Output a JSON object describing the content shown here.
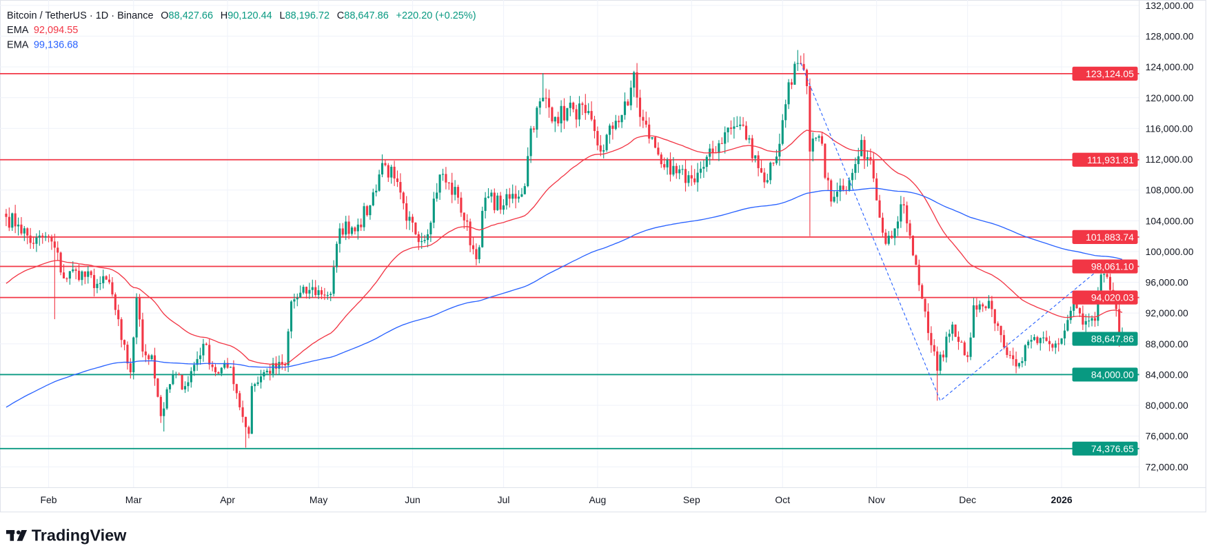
{
  "header": {
    "symbol": "Bitcoin / TetherUS · 1D · Binance",
    "o_label": "O",
    "o_value": "88,427.66",
    "h_label": "H",
    "h_value": "90,120.44",
    "l_label": "L",
    "l_value": "88,196.72",
    "c_label": "C",
    "c_value": "88,647.86",
    "change": "+220.20 (+0.25%)",
    "ema1_label": "EMA",
    "ema1_value": "92,094.55",
    "ema2_label": "EMA",
    "ema2_value": "99,136.68"
  },
  "logo": {
    "text": "TradingView"
  },
  "colors": {
    "up": "#089981",
    "down": "#f23645",
    "ema_fast": "#f23645",
    "ema_slow": "#2962ff",
    "resistance": "#f23645",
    "support": "#089981",
    "trend_dashed": "#2962ff"
  },
  "chart_data": {
    "type": "candlestick",
    "symbol": "BTCUSDT",
    "interval": "1D",
    "ylim": [
      70000,
      132000
    ],
    "y_ticks": [
      "132,000.00",
      "128,000.00",
      "124,000.00",
      "120,000.00",
      "116,000.00",
      "112,000.00",
      "108,000.00",
      "104,000.00",
      "100,000.00",
      "96,000.00",
      "92,000.00",
      "88,000.00",
      "84,000.00",
      "80,000.00",
      "76,000.00",
      "72,000.00"
    ],
    "x_ticks": [
      {
        "label": "Feb",
        "date": "2025-02-01"
      },
      {
        "label": "Mar",
        "date": "2025-03-01"
      },
      {
        "label": "Apr",
        "date": "2025-04-01"
      },
      {
        "label": "May",
        "date": "2025-05-01"
      },
      {
        "label": "Jun",
        "date": "2025-06-01"
      },
      {
        "label": "Jul",
        "date": "2025-07-01"
      },
      {
        "label": "Aug",
        "date": "2025-08-01"
      },
      {
        "label": "Sep",
        "date": "2025-09-01"
      },
      {
        "label": "Oct",
        "date": "2025-10-01"
      },
      {
        "label": "Nov",
        "date": "2025-11-01"
      },
      {
        "label": "Dec",
        "date": "2025-12-01"
      },
      {
        "label": "2026",
        "date": "2026-01-01",
        "bold": true
      }
    ],
    "date_range": [
      "2025-01-18",
      "2026-01-21"
    ],
    "approx_closes": [
      [
        "2025-01-18",
        104500
      ],
      [
        "2025-01-22",
        103500
      ],
      [
        "2025-01-27",
        101000
      ],
      [
        "2025-01-31",
        102000
      ],
      [
        "2025-02-03",
        100500
      ],
      [
        "2025-02-06",
        96500
      ],
      [
        "2025-02-10",
        97500
      ],
      [
        "2025-02-17",
        95800
      ],
      [
        "2025-02-21",
        96000
      ],
      [
        "2025-02-25",
        88500
      ],
      [
        "2025-02-28",
        84300
      ],
      [
        "2025-03-02",
        94000
      ],
      [
        "2025-03-04",
        87000
      ],
      [
        "2025-03-07",
        86500
      ],
      [
        "2025-03-10",
        78600
      ],
      [
        "2025-03-14",
        84000
      ],
      [
        "2025-03-18",
        82500
      ],
      [
        "2025-03-24",
        88000
      ],
      [
        "2025-03-28",
        84300
      ],
      [
        "2025-04-02",
        85000
      ],
      [
        "2025-04-06",
        78500
      ],
      [
        "2025-04-08",
        76300
      ],
      [
        "2025-04-09",
        82500
      ],
      [
        "2025-04-14",
        84500
      ],
      [
        "2025-04-20",
        85200
      ],
      [
        "2025-04-22",
        93500
      ],
      [
        "2025-04-28",
        95000
      ],
      [
        "2025-05-05",
        94500
      ],
      [
        "2025-05-08",
        103000
      ],
      [
        "2025-05-14",
        103500
      ],
      [
        "2025-05-18",
        106000
      ],
      [
        "2025-05-22",
        111500
      ],
      [
        "2025-05-26",
        109500
      ],
      [
        "2025-05-30",
        104000
      ],
      [
        "2025-06-05",
        101500
      ],
      [
        "2025-06-10",
        110000
      ],
      [
        "2025-06-16",
        107000
      ],
      [
        "2025-06-22",
        99000
      ],
      [
        "2025-06-25",
        107000
      ],
      [
        "2025-07-01",
        106000
      ],
      [
        "2025-07-08",
        108500
      ],
      [
        "2025-07-10",
        116000
      ],
      [
        "2025-07-14",
        120000
      ],
      [
        "2025-07-18",
        117500
      ],
      [
        "2025-07-24",
        118500
      ],
      [
        "2025-07-28",
        118000
      ],
      [
        "2025-08-02",
        113000
      ],
      [
        "2025-08-07",
        117000
      ],
      [
        "2025-08-11",
        119000
      ],
      [
        "2025-08-13",
        123300
      ],
      [
        "2025-08-15",
        117500
      ],
      [
        "2025-08-20",
        113500
      ],
      [
        "2025-08-25",
        110000
      ],
      [
        "2025-09-01",
        109500
      ],
      [
        "2025-09-05",
        111000
      ],
      [
        "2025-09-12",
        115500
      ],
      [
        "2025-09-17",
        116500
      ],
      [
        "2025-09-22",
        112500
      ],
      [
        "2025-09-25",
        109000
      ],
      [
        "2025-09-30",
        114000
      ],
      [
        "2025-10-03",
        122000
      ],
      [
        "2025-10-06",
        124500
      ],
      [
        "2025-10-09",
        121500
      ],
      [
        "2025-10-10",
        113000
      ],
      [
        "2025-10-13",
        115000
      ],
      [
        "2025-10-17",
        106500
      ],
      [
        "2025-10-21",
        108000
      ],
      [
        "2025-10-27",
        114500
      ],
      [
        "2025-10-31",
        109500
      ],
      [
        "2025-11-04",
        101000
      ],
      [
        "2025-11-07",
        103000
      ],
      [
        "2025-11-10",
        106000
      ],
      [
        "2025-11-13",
        99500
      ],
      [
        "2025-11-17",
        92200
      ],
      [
        "2025-11-21",
        84500
      ],
      [
        "2025-11-26",
        90500
      ],
      [
        "2025-12-01",
        86300
      ],
      [
        "2025-12-03",
        93000
      ],
      [
        "2025-12-09",
        92500
      ],
      [
        "2025-12-15",
        86500
      ],
      [
        "2025-12-18",
        85500
      ],
      [
        "2025-12-22",
        88500
      ],
      [
        "2025-12-29",
        87500
      ],
      [
        "2026-01-01",
        88700
      ],
      [
        "2026-01-05",
        93500
      ],
      [
        "2026-01-08",
        90500
      ],
      [
        "2026-01-12",
        91000
      ],
      [
        "2026-01-14",
        97000
      ],
      [
        "2026-01-17",
        95000
      ],
      [
        "2026-01-19",
        92500
      ],
      [
        "2026-01-20",
        88400
      ]
    ],
    "notable_extremes": [
      {
        "date": "2025-02-03",
        "low": 91200
      },
      {
        "date": "2025-03-11",
        "low": 76600
      },
      {
        "date": "2025-04-07",
        "low": 74500
      },
      {
        "date": "2025-06-22",
        "low": 98200
      },
      {
        "date": "2025-07-14",
        "high": 123200
      },
      {
        "date": "2025-08-14",
        "high": 124500
      },
      {
        "date": "2025-10-06",
        "high": 126200
      },
      {
        "date": "2025-10-10",
        "low": 102000
      },
      {
        "date": "2025-11-21",
        "low": 80600
      },
      {
        "date": "2026-01-14",
        "high": 97900
      }
    ],
    "last_candle": {
      "date": "2026-01-21",
      "open": 88427.66,
      "high": 90120.44,
      "low": 88196.72,
      "close": 88647.86
    },
    "indicators": [
      {
        "name": "EMA",
        "value": "92,094.55",
        "color": "#f23645"
      },
      {
        "name": "EMA",
        "value": "99,136.68",
        "color": "#2962ff"
      }
    ],
    "horizontal_levels": [
      {
        "price": 123124.05,
        "label": "123,124.05",
        "kind": "resistance"
      },
      {
        "price": 111931.81,
        "label": "111,931.81",
        "kind": "resistance"
      },
      {
        "price": 101883.74,
        "label": "101,883.74",
        "kind": "resistance"
      },
      {
        "price": 98061.1,
        "label": "98,061.10",
        "kind": "resistance"
      },
      {
        "price": 94020.03,
        "label": "94,020.03",
        "kind": "resistance"
      },
      {
        "price": 84000.0,
        "label": "84,000.00",
        "kind": "support"
      },
      {
        "price": 74376.65,
        "label": "74,376.65",
        "kind": "support"
      }
    ],
    "last_price_label": "88,647.86",
    "trend_line_points": [
      [
        "2025-10-07",
        124500
      ],
      [
        "2025-11-22",
        80600
      ],
      [
        "2026-01-14",
        97900
      ]
    ]
  }
}
